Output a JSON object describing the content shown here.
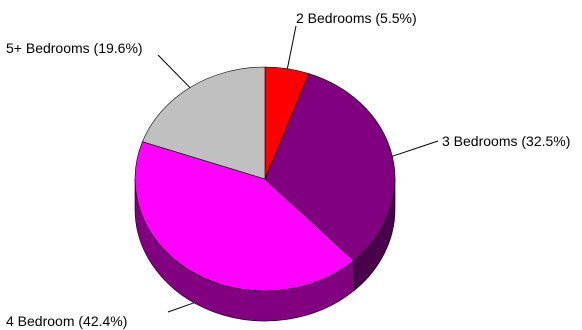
{
  "chart_data": {
    "type": "pie",
    "style": "3d",
    "start": "top, clockwise",
    "slices": [
      {
        "label": "2 Bedrooms (5.5%)",
        "value": 5.5,
        "color": "#ff0000",
        "side_color": "#a00000"
      },
      {
        "label": "3 Bedrooms (32.5%)",
        "value": 32.5,
        "color": "#800080",
        "side_color": "#4a004a"
      },
      {
        "label": "4 Bedroom (42.4%)",
        "value": 42.4,
        "color": "#ff00ff",
        "side_color": "#800080"
      },
      {
        "label": "5+ Bedrooms (19.6%)",
        "value": 19.6,
        "color": "#c0c0c0",
        "side_color": "#808080"
      }
    ]
  }
}
